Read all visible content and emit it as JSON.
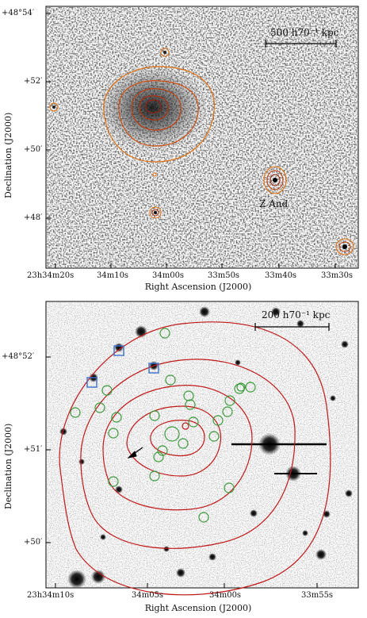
{
  "panels": [
    {
      "id": "top",
      "xaxis_label": "Right Ascension (J2000)",
      "yaxis_label": "Declination (J2000)",
      "x_ticks": [
        "23h34m20s",
        "34m10s",
        "34m00s",
        "33m50s",
        "33m40s",
        "33m30s"
      ],
      "y_ticks": [
        "+48°54′",
        "+52′",
        "+50′",
        "+48′"
      ],
      "scale_bar": "500 h70⁻¹ kpc",
      "annotation": "Z And",
      "contour_colors": [
        "#e07010",
        "#b03010"
      ]
    },
    {
      "id": "bottom",
      "xaxis_label": "Right Ascension (J2000)",
      "yaxis_label": "Declination (J2000)",
      "x_ticks": [
        "23h34m10s",
        "34m05s",
        "34m00s",
        "33m55s"
      ],
      "y_ticks": [
        "+48°52′",
        "+51′",
        "+50′"
      ],
      "scale_bar": "200 h70⁻¹ kpc",
      "contour_color": "#c01818",
      "circle_color": "#3a9a3a",
      "square_color": "#3a6fd0"
    }
  ]
}
